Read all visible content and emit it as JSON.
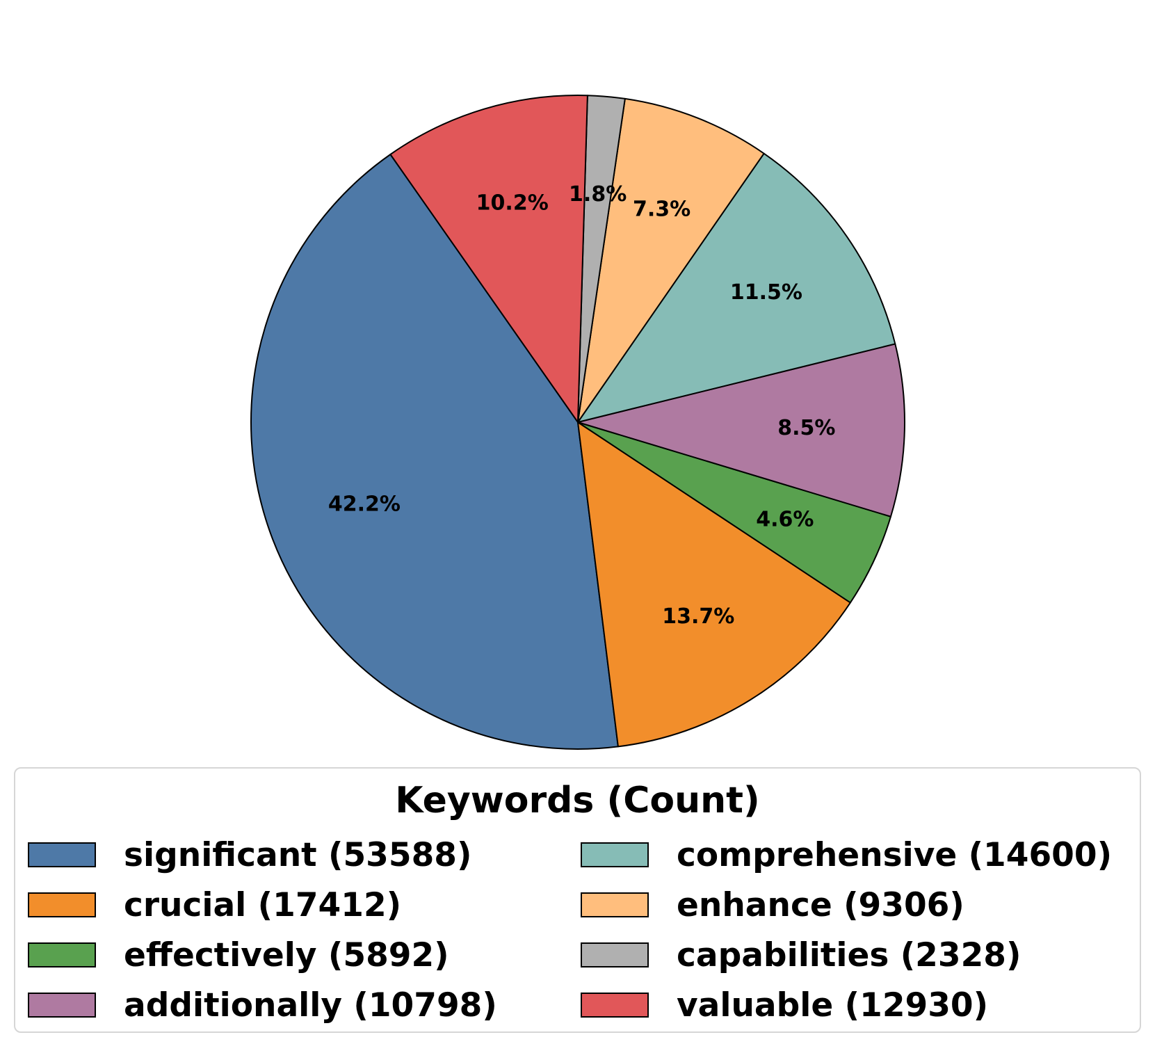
{
  "chart_data": {
    "type": "pie",
    "legend_title": "Keywords (Count)",
    "legend_placement": "bottom",
    "slices": [
      {
        "label": "significant (53588)",
        "value": 53588,
        "pct_label": "42.2%",
        "color": "#4e79a7"
      },
      {
        "label": "crucial (17412)",
        "value": 17412,
        "pct_label": "13.7%",
        "color": "#f28e2b"
      },
      {
        "label": "effectively (5892)",
        "value": 5892,
        "pct_label": "4.6%",
        "color": "#59a14f"
      },
      {
        "label": "additionally (10798)",
        "value": 10798,
        "pct_label": "8.5%",
        "color": "#af7aa1"
      },
      {
        "label": "comprehensive (14600)",
        "value": 14600,
        "pct_label": "11.5%",
        "color": "#86bcb6"
      },
      {
        "label": "enhance (9306)",
        "value": 9306,
        "pct_label": "7.3%",
        "color": "#ffbe7d"
      },
      {
        "label": "capabilities (2328)",
        "value": 2328,
        "pct_label": "1.8%",
        "color": "#b0b0b0"
      },
      {
        "label": "valuable (12930)",
        "value": 12930,
        "pct_label": "10.2%",
        "color": "#e15759"
      }
    ]
  }
}
